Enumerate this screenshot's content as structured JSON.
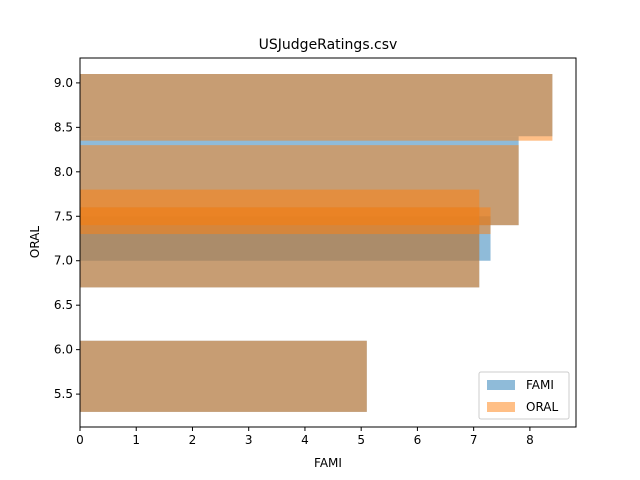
{
  "chart_data": {
    "type": "bar",
    "orientation": "horizontal",
    "title": "USJudgeRatings.csv",
    "xlabel": "FAMI",
    "ylabel": "ORAL",
    "xlim": [
      0,
      8.82
    ],
    "ylim": [
      5.13,
      9.28
    ],
    "xticks": [
      "0",
      "1",
      "2",
      "3",
      "4",
      "5",
      "6",
      "7",
      "8"
    ],
    "yticks": [
      "5.5",
      "6.0",
      "6.5",
      "7.0",
      "7.5",
      "8.0",
      "8.5",
      "9.0"
    ],
    "grid": false,
    "legend_position": "lower right",
    "series": [
      {
        "name": "FAMI",
        "color": "#1f77b4",
        "opacity": 0.5,
        "bars": [
          {
            "y_from": 8.4,
            "y_to": 9.1,
            "value": 8.4
          },
          {
            "y_from": 7.4,
            "y_to": 8.4,
            "value": 7.8
          },
          {
            "y_from": 6.7,
            "y_to": 7.6,
            "value": 7.1
          },
          {
            "y_from": 7.0,
            "y_to": 7.5,
            "value": 7.3
          },
          {
            "y_from": 5.3,
            "y_to": 6.1,
            "value": 5.1
          }
        ]
      },
      {
        "name": "ORAL",
        "color": "#ff7f0e",
        "opacity": 0.5,
        "bars": [
          {
            "y_from": 8.35,
            "y_to": 9.1,
            "value": 8.4
          },
          {
            "y_from": 7.4,
            "y_to": 8.3,
            "value": 7.8
          },
          {
            "y_from": 6.7,
            "y_to": 7.8,
            "value": 7.1
          },
          {
            "y_from": 7.3,
            "y_to": 7.6,
            "value": 7.3
          },
          {
            "y_from": 5.3,
            "y_to": 6.1,
            "value": 5.1
          }
        ]
      }
    ]
  }
}
